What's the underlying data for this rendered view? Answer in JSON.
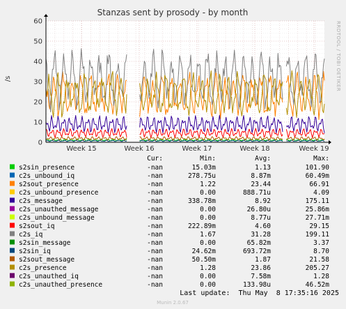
{
  "chart_data": {
    "type": "line",
    "title": "Stanzas sent by prosody - by month",
    "ylabel": "/s",
    "ylim": [
      0,
      60
    ],
    "yticks": [
      "0",
      "10",
      "20",
      "30",
      "40",
      "50",
      "60"
    ],
    "xticks": [
      "Week 15",
      "Week 16",
      "Week 17",
      "Week 18",
      "Week 19"
    ],
    "grid": true,
    "side_label": "RRDTOOL / TOBI OETIKER",
    "legend_headers": {
      "cur": "Cur:",
      "min": "Min:",
      "avg": "Avg:",
      "max": "Max:"
    },
    "series": [
      {
        "name": "s2sin_presence",
        "color": "#00cc00",
        "cur": "-nan",
        "min": "15.03m",
        "avg": "1.13",
        "max": "101.90",
        "level": 1.1
      },
      {
        "name": "c2s_unbound_iq",
        "color": "#0066b3",
        "cur": "-nan",
        "min": "278.75u",
        "avg": "8.87m",
        "max": "60.49m",
        "level": 0.05
      },
      {
        "name": "s2sout_presence",
        "color": "#ff8000",
        "cur": "-nan",
        "min": "1.22",
        "avg": "23.44",
        "max": "66.91",
        "level": 23.4
      },
      {
        "name": "c2s_unbound_presence",
        "color": "#ffcc00",
        "cur": "-nan",
        "min": "0.00",
        "avg": "888.71u",
        "max": "4.09",
        "level": 0.0
      },
      {
        "name": "c2s_message",
        "color": "#330099",
        "cur": "-nan",
        "min": "338.78m",
        "avg": "8.92",
        "max": "175.11",
        "level": 8.9
      },
      {
        "name": "c2s_unauthed_message",
        "color": "#990099",
        "cur": "-nan",
        "min": "0.00",
        "avg": "26.80u",
        "max": "25.86m",
        "level": 0.0
      },
      {
        "name": "c2s_unbound_message",
        "color": "#ccff00",
        "cur": "-nan",
        "min": "0.00",
        "avg": "8.77u",
        "max": "27.71m",
        "level": 0.0
      },
      {
        "name": "s2sout_iq",
        "color": "#ff0000",
        "cur": "-nan",
        "min": "222.89m",
        "avg": "4.60",
        "max": "29.15",
        "level": 4.6
      },
      {
        "name": "c2s_iq",
        "color": "#808080",
        "cur": "-nan",
        "min": "1.67",
        "avg": "31.28",
        "max": "199.11",
        "level": 31.3
      },
      {
        "name": "s2sin_message",
        "color": "#008f00",
        "cur": "-nan",
        "min": "0.00",
        "avg": "65.82m",
        "max": "3.37",
        "level": 0.07
      },
      {
        "name": "s2sin_iq",
        "color": "#00487d",
        "cur": "-nan",
        "min": "24.62m",
        "avg": "693.72m",
        "max": "8.70",
        "level": 0.7
      },
      {
        "name": "s2sout_message",
        "color": "#b35a00",
        "cur": "-nan",
        "min": "50.50m",
        "avg": "1.87",
        "max": "21.58",
        "level": 1.9
      },
      {
        "name": "c2s_presence",
        "color": "#b38f00",
        "cur": "-nan",
        "min": "1.28",
        "avg": "23.86",
        "max": "205.27",
        "level": 23.9
      },
      {
        "name": "c2s_unauthed_iq",
        "color": "#6b006b",
        "cur": "-nan",
        "min": "0.00",
        "avg": "7.58m",
        "max": "1.28",
        "level": 0.01
      },
      {
        "name": "c2s_unauthed_presence",
        "color": "#8fb300",
        "cur": "-nan",
        "min": "0.00",
        "avg": "133.98u",
        "max": "46.52m",
        "level": 0.0
      }
    ],
    "last_update": "Last update:  Thu May  8 17:35:16 2025",
    "footer": "Munin 2.0.67"
  }
}
